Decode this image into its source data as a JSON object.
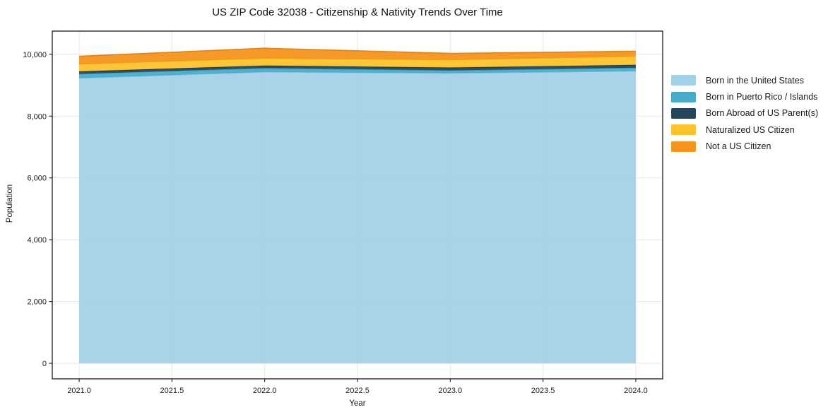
{
  "title": "US ZIP Code 32038 - Citizenship & Nativity Trends Over Time",
  "chart_data": {
    "type": "area",
    "stacked": true,
    "title": "US ZIP Code 32038 - Citizenship & Nativity Trends Over Time",
    "xlabel": "Year",
    "ylabel": "Population",
    "x": [
      2021,
      2022,
      2023,
      2024
    ],
    "series": [
      {
        "name": "Born in the United States",
        "color": "#A3D1E8",
        "edge": "#7FB9D9",
        "values": [
          9230,
          9430,
          9390,
          9460
        ]
      },
      {
        "name": "Born in Puerto Rico / Islands",
        "color": "#48ACC8",
        "edge": "#2E93AF",
        "values": [
          137,
          126,
          91,
          107
        ]
      },
      {
        "name": "Born Abroad of US Parent(s)",
        "color": "#24455A",
        "edge": "#16303F",
        "values": [
          80,
          80,
          91,
          91
        ]
      },
      {
        "name": "Naturalized US Citizen",
        "color": "#FCC32D",
        "edge": "#E3A312",
        "values": [
          240,
          240,
          252,
          281
        ]
      },
      {
        "name": "Not a US Citizen",
        "color": "#F6941E",
        "edge": "#DD7E0D",
        "values": [
          250,
          320,
          206,
          160
        ]
      }
    ],
    "xlim": [
      2020.855,
      2024.145
    ],
    "ylim": [
      -500,
      10750
    ],
    "xticks": [
      2021.0,
      2021.5,
      2022.0,
      2022.5,
      2023.0,
      2023.5,
      2024.0
    ],
    "xtick_labels": [
      "2021.0",
      "2021.5",
      "2022.0",
      "2022.5",
      "2023.0",
      "2023.5",
      "2024.0"
    ],
    "yticks": [
      0,
      2000,
      4000,
      6000,
      8000,
      10000
    ],
    "ytick_labels": [
      "0",
      "2,000",
      "4,000",
      "6,000",
      "8,000",
      "10,000"
    ],
    "grid": true,
    "legend_position": "right",
    "colors": {
      "spine": "#1a1a1a",
      "grid": "#e6e6e6",
      "tick_label": "#1a1a1a",
      "background": "#ffffff"
    }
  }
}
